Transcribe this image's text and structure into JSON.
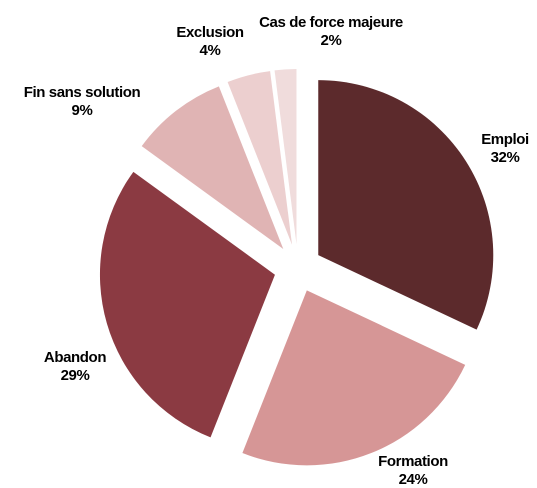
{
  "chart_data": {
    "type": "pie",
    "categories": [
      "Emploi",
      "Formation",
      "Abandon",
      "Fin sans solution",
      "Exclusion",
      "Cas de force majeure"
    ],
    "values": [
      32,
      24,
      29,
      9,
      4,
      2
    ],
    "value_labels": [
      "32%",
      "24%",
      "29%",
      "9%",
      "4%",
      "2%"
    ],
    "colors": [
      "#5c2a2c",
      "#d69696",
      "#8b3a42",
      "#e0b4b4",
      "#eccfcf",
      "#f0dcdc"
    ]
  }
}
